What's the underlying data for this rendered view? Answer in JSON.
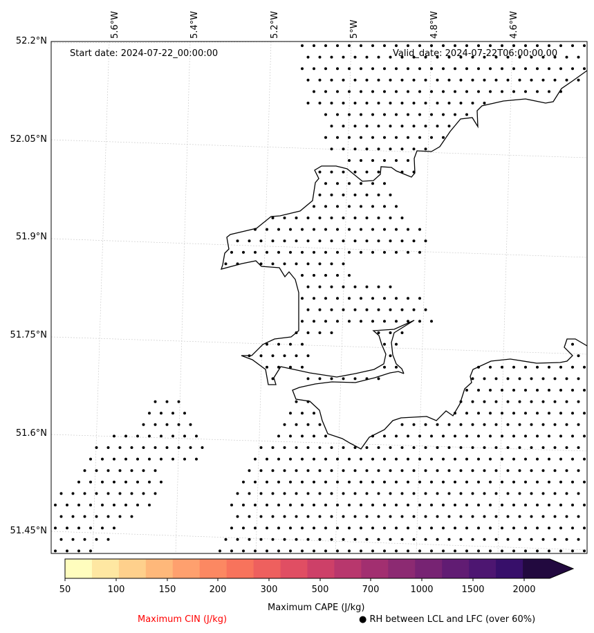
{
  "map": {
    "start_date": "Start date: 2024-07-22_00:00:00",
    "valid_date": "Valid_date: 2024-07-22T06:00:00.00",
    "lon_labels": [
      "5.6°W",
      "5.4°W",
      "5.2°W",
      "5°W",
      "4.8°W",
      "4.6°W"
    ],
    "lat_labels": [
      "52.2°N",
      "52.05°N",
      "51.9°N",
      "51.75°N",
      "51.6°N",
      "51.45°N"
    ],
    "coastline_color": "#000000",
    "gridline_color": "#cccccc"
  },
  "colorbar": {
    "title": "Maximum CAPE (J/kg)",
    "tick_labels": [
      "50",
      "100",
      "150",
      "200",
      "300",
      "500",
      "700",
      "1000",
      "1500",
      "2000"
    ],
    "levels": [
      50,
      75,
      100,
      125,
      150,
      175,
      200,
      250,
      300,
      400,
      500,
      600,
      700,
      850,
      1000,
      1250,
      1500,
      1750,
      2000
    ],
    "colors": [
      "#fffdbe",
      "#fee7a2",
      "#fed08c",
      "#feb87a",
      "#fea06e",
      "#fc8862",
      "#f8735c",
      "#ee605e",
      "#e04e63",
      "#cd4068",
      "#b8376d",
      "#a22f70",
      "#8c2a72",
      "#772373",
      "#611c73",
      "#4d1671",
      "#370f6a",
      "#22093f"
    ],
    "extend": "max"
  },
  "legend": {
    "cin_label": "Maximum CIN (J/kg)",
    "cin_color": "#ff0000",
    "rh_label": "● RH between LCL and LFC (over 60%)"
  }
}
